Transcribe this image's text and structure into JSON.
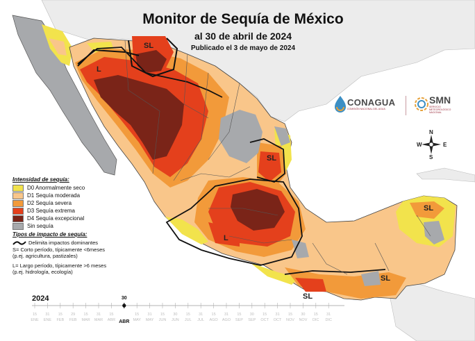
{
  "title": {
    "main": "Monitor de Sequía de México",
    "date": "al 30 de abril de 2024",
    "published": "Publicado el 3 de mayo de 2024"
  },
  "legend": {
    "title": "Intensidad de sequía:",
    "items": [
      {
        "label": "D0 Anormalmente seco",
        "color": "#f2e34c"
      },
      {
        "label": "D1 Sequía moderada",
        "color": "#f9c68a"
      },
      {
        "label": "D2 Sequía severa",
        "color": "#f29a3a"
      },
      {
        "label": "D3 Sequía extrema",
        "color": "#e4401c"
      },
      {
        "label": "D4 Sequía excepcional",
        "color": "#7a2418"
      },
      {
        "label": "Sin sequía",
        "color": "#a7a9ac"
      }
    ]
  },
  "impacts": {
    "title": "Tipos de impacto de sequía:",
    "line_label": "Delimita impactos dominantes",
    "short_1": "S= Corto período, típicamente <6meses",
    "short_2": "(p.ej. agricultura, pastizales)",
    "long_1": "L= Largo período, típicamente >6 meses",
    "long_2": "(p.ej. hidrología, ecología)"
  },
  "map_labels": [
    {
      "text": "SL"
    },
    {
      "text": "L"
    },
    {
      "text": "SL"
    },
    {
      "text": "L"
    },
    {
      "text": "SL"
    },
    {
      "text": "SL"
    },
    {
      "text": "SL"
    }
  ],
  "logos": {
    "conagua": "CONAGUA",
    "conagua_sub": "COMISIÓN NACIONAL DEL AGUA",
    "smn": "SMN",
    "smn_sub_1": "SERVICIO",
    "smn_sub_2": "METEOROLÓGICO",
    "smn_sub_3": "NACIONAL"
  },
  "compass": {
    "n": "N",
    "s": "S",
    "e": "E",
    "w": "W"
  },
  "timeline": {
    "year": "2024",
    "selected_day": "30",
    "selected_month": "ABR",
    "ticks": [
      {
        "day": "15",
        "month": "ENE"
      },
      {
        "day": "31",
        "month": "ENE"
      },
      {
        "day": "15",
        "month": "FEB"
      },
      {
        "day": "29",
        "month": "FEB"
      },
      {
        "day": "15",
        "month": "MAR"
      },
      {
        "day": "31",
        "month": "MAR"
      },
      {
        "day": "15",
        "month": "ABR"
      },
      {
        "day": "30",
        "month": "ABR"
      },
      {
        "day": "15",
        "month": "MAY"
      },
      {
        "day": "31",
        "month": "MAY"
      },
      {
        "day": "15",
        "month": "JUN"
      },
      {
        "day": "30",
        "month": "JUN"
      },
      {
        "day": "15",
        "month": "JUL"
      },
      {
        "day": "31",
        "month": "JUL"
      },
      {
        "day": "15",
        "month": "AGO"
      },
      {
        "day": "31",
        "month": "AGO"
      },
      {
        "day": "15",
        "month": "SEP"
      },
      {
        "day": "30",
        "month": "SEP"
      },
      {
        "day": "15",
        "month": "OCT"
      },
      {
        "day": "31",
        "month": "OCT"
      },
      {
        "day": "15",
        "month": "NOV"
      },
      {
        "day": "30",
        "month": "NOV"
      },
      {
        "day": "15",
        "month": "DIC"
      },
      {
        "day": "31",
        "month": "DIC"
      }
    ]
  }
}
